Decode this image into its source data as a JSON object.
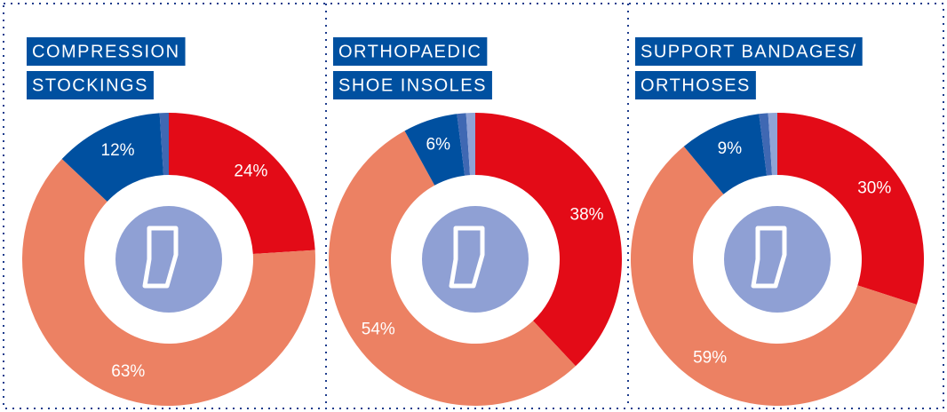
{
  "chart_data": [
    {
      "type": "donut",
      "title_lines": [
        "COMPRESSION",
        "STOCKINGS"
      ],
      "values": [
        24,
        63,
        12,
        1
      ],
      "value_labels": [
        "24%",
        "63%",
        "12%",
        null
      ],
      "colors": [
        "#e30b17",
        "#ec8163",
        "#0050a0",
        "#3f68b3"
      ]
    },
    {
      "type": "donut",
      "title_lines": [
        "ORTHOPAEDIC",
        "SHOE INSOLES"
      ],
      "values": [
        38,
        54,
        6,
        1,
        1
      ],
      "value_labels": [
        "38%",
        "54%",
        "6%",
        null,
        null
      ],
      "colors": [
        "#e30b17",
        "#ec8163",
        "#0050a0",
        "#3f68b3",
        "#8fa3d6"
      ]
    },
    {
      "type": "donut",
      "title_lines": [
        "SUPPORT BANDAGES/",
        "ORTHOSES"
      ],
      "values": [
        30,
        59,
        9,
        1,
        1
      ],
      "value_labels": [
        "30%",
        "59%",
        "9%",
        null,
        null
      ],
      "colors": [
        "#e30b17",
        "#ec8163",
        "#0050a0",
        "#3f68b3",
        "#8fa3d6"
      ]
    }
  ]
}
